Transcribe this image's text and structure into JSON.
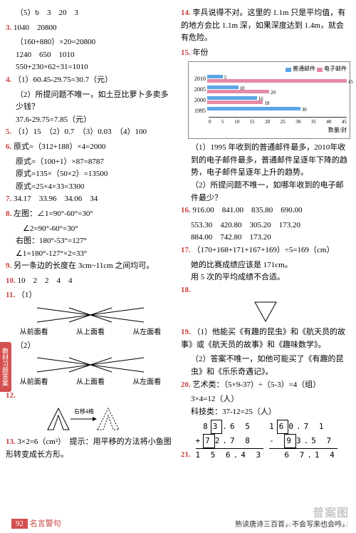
{
  "sidebar": "教材习题答案",
  "footer": {
    "page": "92",
    "label": "名言警句",
    "text": "熟读唐诗三百首，不会写来也会吟。"
  },
  "watermark": {
    "line1": "普案图",
    "line2": "WWW.MXQE.COM"
  },
  "left": {
    "q5_line": "（5）b　3　20　3",
    "q3": {
      "num": "3.",
      "vals": "1040　20800",
      "l2": "（160+880）×20=20800",
      "l3": "1240　650　1010",
      "l4": "550+230×62÷31=1010"
    },
    "q4": {
      "num": "4.",
      "l1": "（1）60.45-29.75=30.7（元）",
      "l2": "（2）所提问题不唯一，如土豆比萝卜多卖多少钱？",
      "l3": "37.6-29.75=7.85（元）"
    },
    "q5b": {
      "num": "5.",
      "l1": "（1）15　（2）0.7　（3）0.03　（4）100"
    },
    "q6": {
      "num": "6.",
      "l1": "原式=（312+188）×4=2000",
      "l2": "原式=（100+1）×87=8787",
      "l3": "原式=135×（50×2）=13500",
      "l4": "原式=25×4×33=3300"
    },
    "q7": {
      "num": "7.",
      "l1": "34.17　33.96　34.06　34"
    },
    "q8": {
      "num": "8.",
      "l1": "左图：∠1=90°-60°=30°",
      "l2": "∠2=90°-60°=30°",
      "l3": "右图：180°-53°=127°",
      "l4": "∠1=180°-127°×2=33°"
    },
    "q9": {
      "num": "9.",
      "l1": "另一条边的长度在 3cm~11cm 之间均可。"
    },
    "q10": {
      "num": "10.",
      "l1": "10　2　2　4　4"
    },
    "q11": {
      "num": "11.",
      "sub1": "（1）",
      "sub2": "（2）",
      "labels": [
        "从前面看",
        "从上面看",
        "从左面看"
      ]
    },
    "q12": {
      "num": "12.",
      "txt": "右移4格"
    },
    "q13": {
      "num": "13.",
      "l1": "3×2=6（cm²）　提示：用平移的方法将小鱼图形转变成长方形。"
    }
  },
  "right": {
    "q14": {
      "num": "14.",
      "l1": "李兵说得不对。这里的 1.1m 只是平均值，有的地方会比 1.1m 深，如果深度达到 1.4m，就会有危险。"
    },
    "q15": {
      "num": "15.",
      "ylabel": "年份",
      "legend": [
        {
          "color": "#5aa6e6",
          "label": "普通邮件"
        },
        {
          "color": "#e68aa6",
          "label": "电子邮件"
        }
      ],
      "rows": [
        {
          "year": "2010",
          "bars": [
            {
              "v": 5,
              "c": "#5aa6e6"
            },
            {
              "v": 45,
              "c": "#e68aa6"
            }
          ]
        },
        {
          "year": "2005",
          "bars": [
            {
              "v": 10,
              "c": "#5aa6e6"
            },
            {
              "v": 20,
              "c": "#e68aa6"
            }
          ]
        },
        {
          "year": "2000",
          "bars": [
            {
              "v": 16,
              "c": "#5aa6e6"
            },
            {
              "v": 18,
              "c": "#e68aa6"
            }
          ]
        },
        {
          "year": "1995",
          "bars": [
            {
              "v": 30,
              "c": "#5aa6e6"
            },
            {
              "v": 0,
              "c": "#e68aa6"
            }
          ]
        }
      ],
      "xticks": [
        "0",
        "5",
        "10",
        "15",
        "20",
        "25",
        "30",
        "35",
        "40",
        "45"
      ],
      "xlabel": "数量/封",
      "a1": "（1）1995 年收到的普通邮件最多，2010年收到的电子邮件最多，普通邮件呈逐年下降的趋势，电子邮件呈逐年上升的趋势。",
      "a2": "（2）所提问题不唯一，如哪年收到的电子邮件最少？"
    },
    "q16": {
      "num": "16.",
      "l1": "916.00　841.00　835.80　690.00",
      "l2": "553.30　420.80　305.20　173.20",
      "l3": "884.00　742.80　173.20"
    },
    "q17": {
      "num": "17.",
      "l1": "（170+168+171+167+169）÷5=169（cm）",
      "l2": "她的比赛成绩应该是 171cm。",
      "l3": "用 5 次的平均成绩不合适。"
    },
    "q18": {
      "num": "18."
    },
    "q19": {
      "num": "19.",
      "l1": "（1）他能买《有趣的昆虫》和《航天员的故事》或《航天员的故事》和《趣味数学》。",
      "l2": "（2）答案不唯一，如他可能买了《有趣的昆虫》和《乐乐奇遇记》。"
    },
    "q20": {
      "num": "20.",
      "l1": "艺术类：（5×9-37）÷（5-3）=4（组）",
      "l2": "3×4=12（人）",
      "l3": "科技类：37-12=25（人）"
    },
    "q21": {
      "num": "21.",
      "calc1": {
        "r1": " 8 3.65",
        "r2": "+72.78",
        "r3": "156.43",
        "b1": "3",
        "b2": "7"
      },
      "calc2": {
        "r1": "160.71",
        "r2": "- 93.57",
        "r3": " 67.14",
        "b1": "6",
        "b2": "9"
      }
    }
  },
  "style": {
    "num_color": "#c84040",
    "chart_max": 45
  }
}
